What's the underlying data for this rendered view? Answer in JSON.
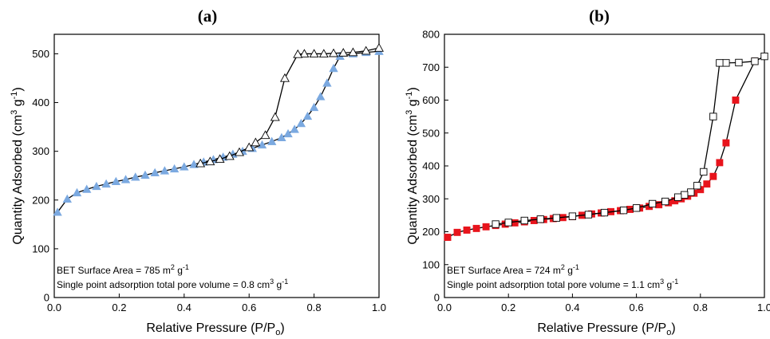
{
  "chart_data": [
    {
      "type": "scatter",
      "panel_label": "(a)",
      "title": "",
      "xlabel": "Relative Pressure (P/P",
      "xlabel_sub": "o",
      "xlabel_end": ")",
      "ylabel": "Quantity Adsorbed (cm",
      "ylabel_sup1": "3",
      "ylabel_mid": " g",
      "ylabel_sup2": "-1",
      "ylabel_end": ")",
      "xlim": [
        0,
        1.0
      ],
      "ylim": [
        0,
        540
      ],
      "xticks": [
        0,
        0.2,
        0.4,
        0.6,
        0.8,
        1.0
      ],
      "yticks": [
        0,
        100,
        200,
        300,
        400,
        500
      ],
      "xtick_labels": [
        "0.0",
        "0.2",
        "0.4",
        "0.6",
        "0.8",
        "1.0"
      ],
      "ytick_labels": [
        "0",
        "100",
        "200",
        "300",
        "400",
        "500"
      ],
      "grid": false,
      "annotations": {
        "line1_pre": "BET Surface Area = 785 m",
        "line1_sup": "2",
        "line1_mid": " g",
        "line1_sup2": "-1",
        "line2_pre": "Single point adsorption total pore volume = 0.8 cm",
        "line2_sup": "3",
        "line2_mid": " g",
        "line2_sup2": "-1"
      },
      "series": [
        {
          "role": "adsorption",
          "marker": "triangle-filled",
          "color": "#7ba9e0",
          "points": [
            [
              0.01,
              175
            ],
            [
              0.04,
              202
            ],
            [
              0.07,
              215
            ],
            [
              0.1,
              222
            ],
            [
              0.13,
              228
            ],
            [
              0.16,
              233
            ],
            [
              0.19,
              238
            ],
            [
              0.22,
              242
            ],
            [
              0.25,
              247
            ],
            [
              0.28,
              251
            ],
            [
              0.31,
              256
            ],
            [
              0.34,
              260
            ],
            [
              0.37,
              264
            ],
            [
              0.4,
              268
            ],
            [
              0.43,
              273
            ],
            [
              0.46,
              278
            ],
            [
              0.49,
              283
            ],
            [
              0.52,
              288
            ],
            [
              0.55,
              294
            ],
            [
              0.58,
              300
            ],
            [
              0.61,
              306
            ],
            [
              0.64,
              313
            ],
            [
              0.67,
              320
            ],
            [
              0.7,
              328
            ],
            [
              0.72,
              336
            ],
            [
              0.74,
              345
            ],
            [
              0.76,
              357
            ],
            [
              0.78,
              372
            ],
            [
              0.8,
              390
            ],
            [
              0.82,
              412
            ],
            [
              0.84,
              440
            ],
            [
              0.86,
              470
            ],
            [
              0.88,
              495
            ],
            [
              0.92,
              500
            ],
            [
              0.96,
              503
            ],
            [
              1.0,
              505
            ]
          ]
        },
        {
          "role": "desorption",
          "marker": "triangle-open",
          "color": "#000000",
          "points": [
            [
              1.0,
              512
            ],
            [
              0.96,
              506
            ],
            [
              0.92,
              503
            ],
            [
              0.89,
              502
            ],
            [
              0.86,
              501
            ],
            [
              0.83,
              500
            ],
            [
              0.8,
              500
            ],
            [
              0.77,
              500
            ],
            [
              0.75,
              499
            ],
            [
              0.71,
              450
            ],
            [
              0.68,
              370
            ],
            [
              0.65,
              333
            ],
            [
              0.62,
              318
            ],
            [
              0.6,
              308
            ],
            [
              0.57,
              298
            ],
            [
              0.54,
              290
            ],
            [
              0.51,
              284
            ],
            [
              0.48,
              279
            ],
            [
              0.45,
              275
            ]
          ]
        }
      ]
    },
    {
      "type": "scatter",
      "panel_label": "(b)",
      "title": "",
      "xlabel": "Relative Pressure (P/P",
      "xlabel_sub": "o",
      "xlabel_end": ")",
      "ylabel": "Quantity Adsorbed (cm",
      "ylabel_sup1": "3",
      "ylabel_mid": " g",
      "ylabel_sup2": "-1",
      "ylabel_end": ")",
      "xlim": [
        0,
        1.0
      ],
      "ylim": [
        0,
        800
      ],
      "xticks": [
        0,
        0.2,
        0.4,
        0.6,
        0.8,
        1.0
      ],
      "yticks": [
        0,
        100,
        200,
        300,
        400,
        500,
        600,
        700,
        800
      ],
      "xtick_labels": [
        "0.0",
        "0.2",
        "0.4",
        "0.6",
        "0.8",
        "1.0"
      ],
      "ytick_labels": [
        "0",
        "100",
        "200",
        "300",
        "400",
        "500",
        "600",
        "700",
        "800"
      ],
      "grid": false,
      "annotations": {
        "line1_pre": "BET Surface Area = 724 m",
        "line1_sup": "2",
        "line1_mid": " g",
        "line1_sup2": "-1",
        "line2_pre": "Single point adsorption total pore volume = 1.1 cm",
        "line2_sup": "3",
        "line2_mid": " g",
        "line2_sup2": "-1"
      },
      "series": [
        {
          "role": "adsorption",
          "marker": "square-filled",
          "color": "#e8141c",
          "points": [
            [
              0.01,
              183
            ],
            [
              0.04,
              198
            ],
            [
              0.07,
              205
            ],
            [
              0.1,
              210
            ],
            [
              0.13,
              215
            ],
            [
              0.16,
              219
            ],
            [
              0.19,
              223
            ],
            [
              0.22,
              227
            ],
            [
              0.25,
              230
            ],
            [
              0.28,
              234
            ],
            [
              0.31,
              237
            ],
            [
              0.34,
              240
            ],
            [
              0.37,
              243
            ],
            [
              0.4,
              246
            ],
            [
              0.43,
              250
            ],
            [
              0.46,
              254
            ],
            [
              0.49,
              257
            ],
            [
              0.52,
              261
            ],
            [
              0.55,
              264
            ],
            [
              0.58,
              268
            ],
            [
              0.61,
              272
            ],
            [
              0.64,
              277
            ],
            [
              0.67,
              282
            ],
            [
              0.7,
              288
            ],
            [
              0.72,
              294
            ],
            [
              0.74,
              300
            ],
            [
              0.76,
              308
            ],
            [
              0.78,
              317
            ],
            [
              0.8,
              328
            ],
            [
              0.82,
              345
            ],
            [
              0.84,
              368
            ],
            [
              0.86,
              410
            ],
            [
              0.88,
              470
            ],
            [
              0.91,
              600
            ],
            [
              0.97,
              718
            ]
          ]
        },
        {
          "role": "desorption",
          "marker": "square-open",
          "color": "#000000",
          "points": [
            [
              1.0,
              733
            ],
            [
              0.97,
              718
            ],
            [
              0.92,
              714
            ],
            [
              0.88,
              713
            ],
            [
              0.86,
              713
            ],
            [
              0.84,
              550
            ],
            [
              0.81,
              382
            ],
            [
              0.79,
              340
            ],
            [
              0.77,
              320
            ],
            [
              0.75,
              312
            ],
            [
              0.73,
              305
            ],
            [
              0.69,
              292
            ],
            [
              0.65,
              285
            ],
            [
              0.6,
              272
            ],
            [
              0.56,
              265
            ],
            [
              0.5,
              258
            ],
            [
              0.45,
              252
            ],
            [
              0.4,
              247
            ],
            [
              0.35,
              242
            ],
            [
              0.3,
              238
            ],
            [
              0.25,
              234
            ],
            [
              0.2,
              228
            ],
            [
              0.16,
              223
            ]
          ]
        }
      ]
    }
  ]
}
